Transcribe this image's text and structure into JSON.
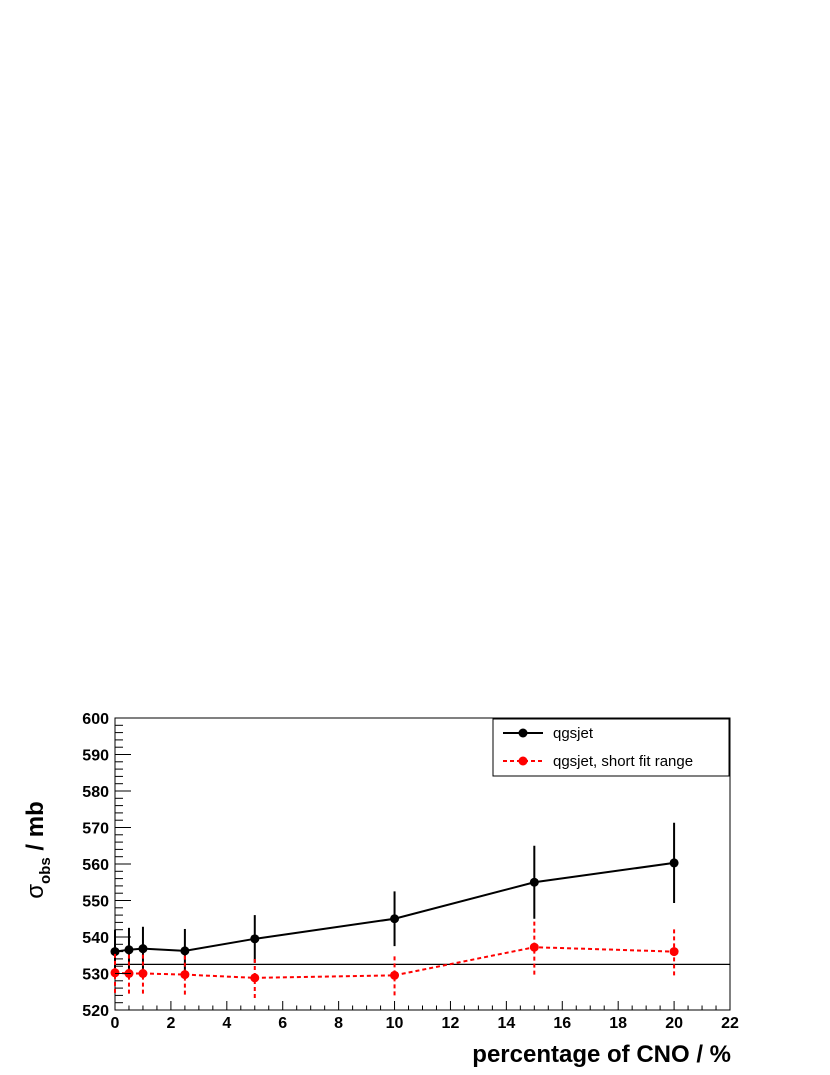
{
  "chart_data": {
    "type": "line",
    "title": "",
    "xlabel": "percentage of CNO / %",
    "ylabel": {
      "main": "σ",
      "sub": "obs",
      "rest": " / mb"
    },
    "xlim": [
      0,
      22
    ],
    "ylim": [
      520,
      600
    ],
    "xticks": [
      0,
      2,
      4,
      6,
      8,
      10,
      12,
      14,
      16,
      18,
      20,
      22
    ],
    "yticks": [
      520,
      530,
      540,
      550,
      560,
      570,
      580,
      590,
      600
    ],
    "reference_line": {
      "y": 532.5
    },
    "legend": {
      "placement": "top-right"
    },
    "series": [
      {
        "name": "qgsjet",
        "color": "#000000",
        "style": "solid",
        "x": [
          0,
          0.5,
          1,
          2.5,
          5,
          10,
          15,
          20
        ],
        "y": [
          536,
          536.5,
          536.8,
          536.2,
          539.5,
          545,
          555,
          560.3
        ],
        "err": [
          6,
          6,
          6,
          6,
          6.5,
          7.5,
          10,
          11
        ]
      },
      {
        "name": "qgsjet, short fit range",
        "color": "#ff0000",
        "style": "dashed",
        "x": [
          0,
          0.5,
          1,
          2.5,
          5,
          10,
          15,
          20
        ],
        "y": [
          530.2,
          530,
          530,
          529.7,
          528.8,
          529.5,
          537.2,
          536
        ],
        "err": [
          5.5,
          5.5,
          5.5,
          5.5,
          5.5,
          5.5,
          7.5,
          6.5
        ]
      }
    ]
  }
}
